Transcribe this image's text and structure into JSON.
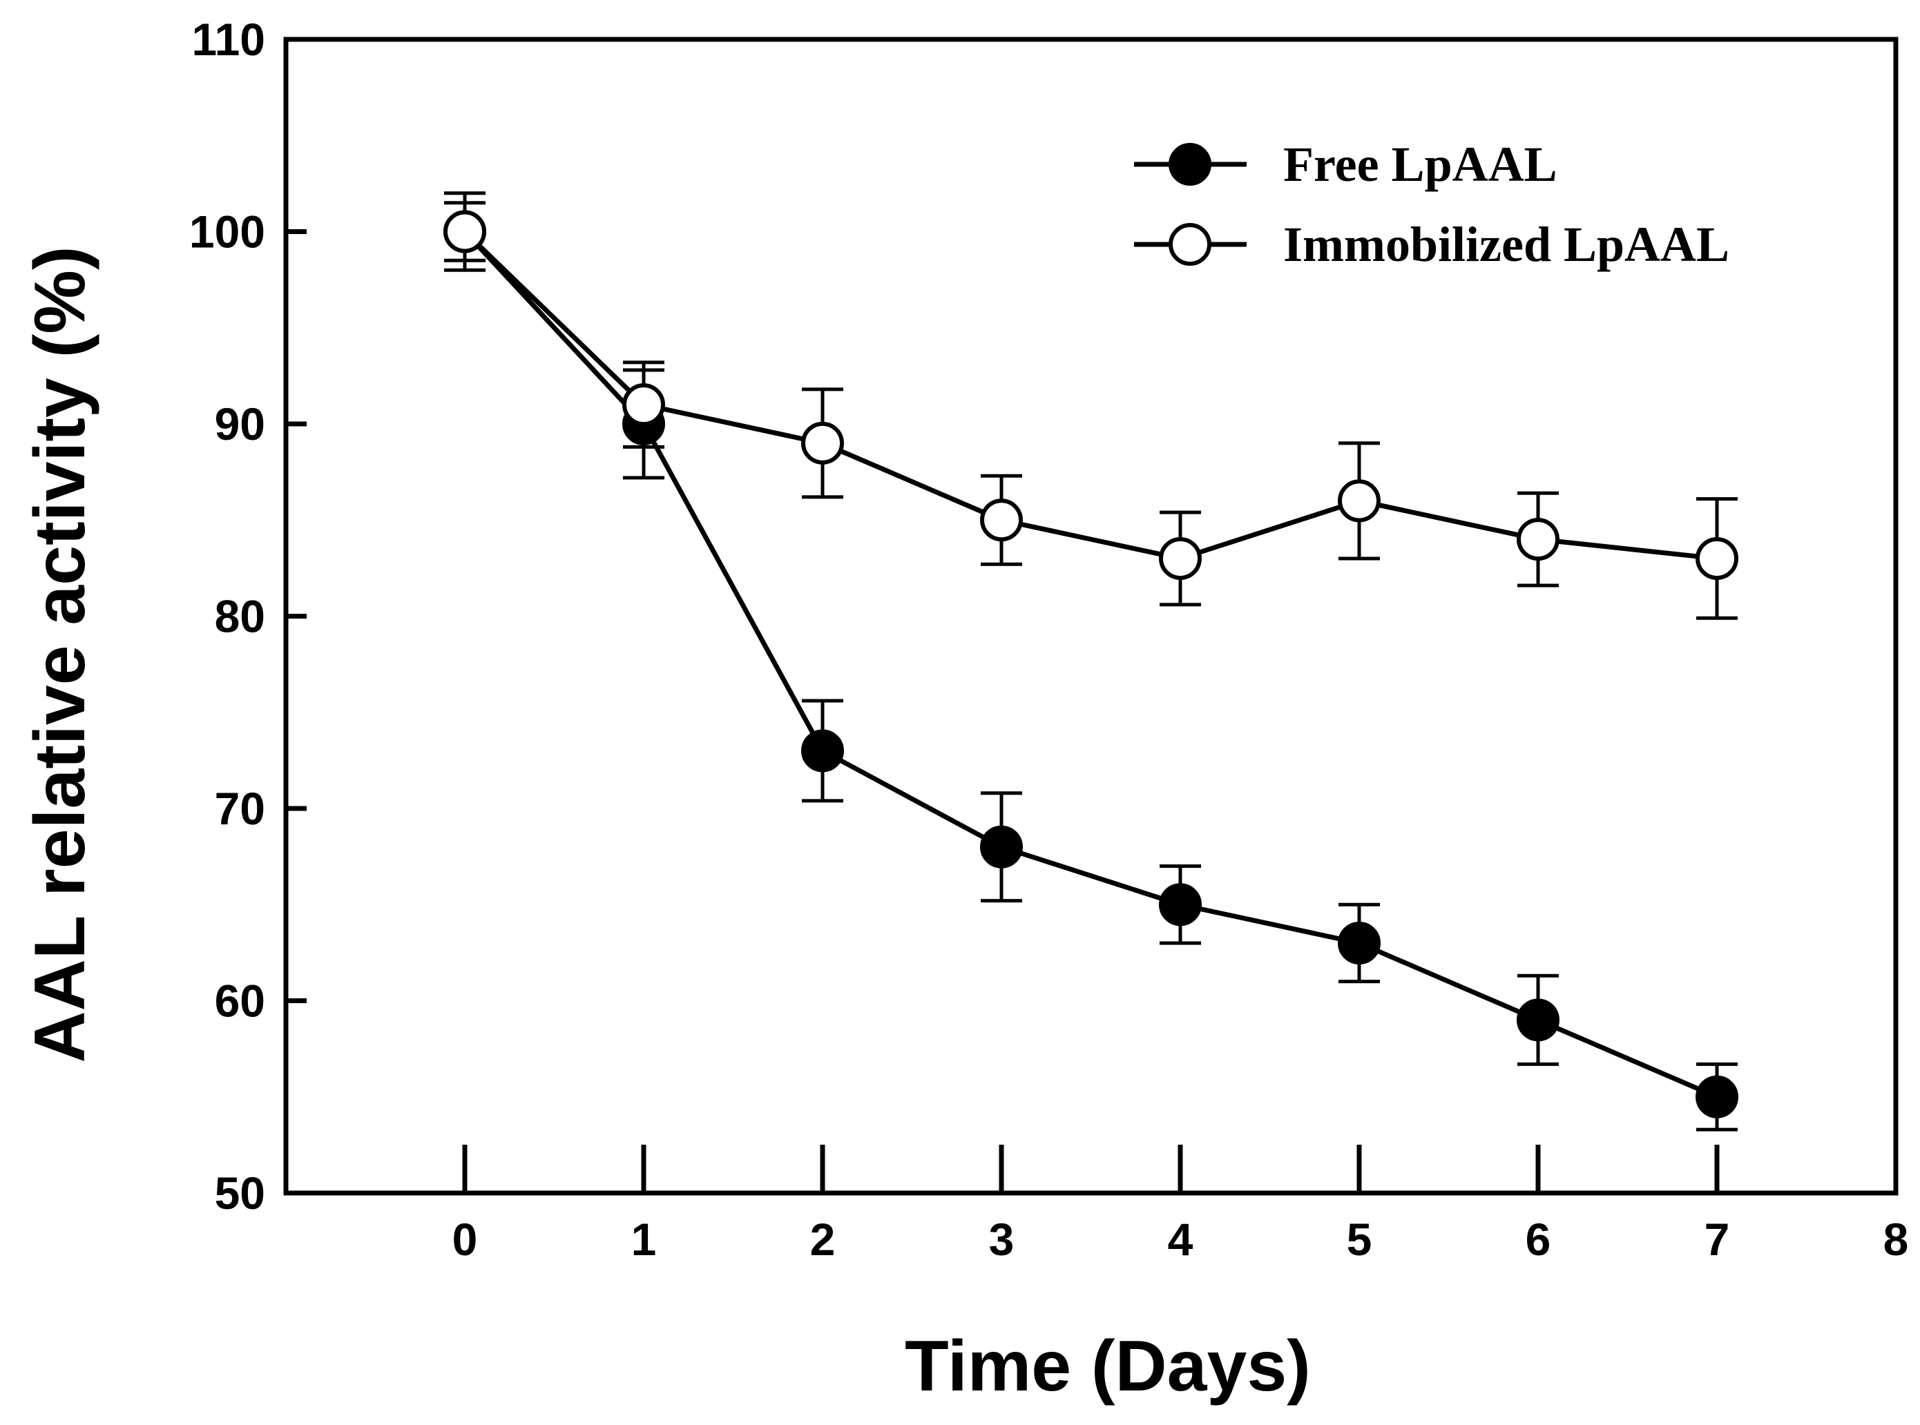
{
  "chart_data": {
    "type": "line",
    "title": "",
    "xlabel": "Time (Days)",
    "ylabel": "AAL relative activity (%)",
    "xlim": [
      -1,
      8
    ],
    "ylim": [
      50,
      110
    ],
    "xticks": [
      "0",
      "1",
      "2",
      "3",
      "4",
      "5",
      "6",
      "7",
      "8"
    ],
    "yticks": [
      "50",
      "60",
      "70",
      "80",
      "90",
      "100",
      "110"
    ],
    "grid": false,
    "legend_position": "top-right",
    "series": [
      {
        "name": "Free LpAAL",
        "marker": "filled-circle",
        "x": [
          0,
          1,
          2,
          3,
          4,
          5,
          6,
          7
        ],
        "values": [
          100,
          90,
          73,
          68,
          65,
          63,
          59,
          55
        ],
        "error": [
          2,
          2.8,
          2.6,
          2.8,
          2,
          2,
          2.3,
          1.7
        ]
      },
      {
        "name": "Immobilized LpAAL",
        "marker": "open-circle",
        "x": [
          0,
          1,
          2,
          3,
          4,
          5,
          6,
          7
        ],
        "values": [
          100,
          91,
          89,
          85,
          83,
          86,
          84,
          83
        ],
        "error": [
          1.5,
          2.2,
          2.8,
          2.3,
          2.4,
          3,
          2.4,
          3.1
        ]
      }
    ]
  }
}
